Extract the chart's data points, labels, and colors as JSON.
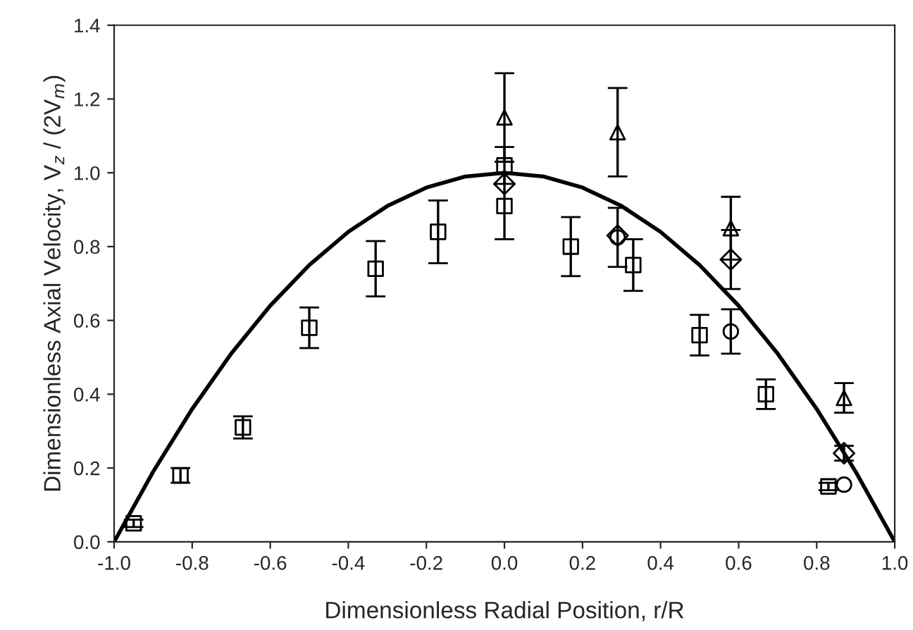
{
  "chart_data": {
    "type": "scatter",
    "xlabel": "Dimensionless Radial Position, r/R",
    "ylabel": "Dimensionless Axial Velocity, V$_{z}$ / (2V$_{m}$)",
    "xlim": [
      -1.0,
      1.0
    ],
    "xticks": [
      {
        "value": -1.0,
        "label": "-1.0"
      },
      {
        "value": -0.8,
        "label": "-0.8"
      },
      {
        "value": -0.6,
        "label": "-0.6"
      },
      {
        "value": -0.4,
        "label": "-0.4"
      },
      {
        "value": -0.2,
        "label": "-0.2"
      },
      {
        "value": 0.0,
        "label": "0.0"
      },
      {
        "value": 0.2,
        "label": "0.2"
      },
      {
        "value": 0.4,
        "label": "0.4"
      },
      {
        "value": 0.6,
        "label": "0.6"
      },
      {
        "value": 0.8,
        "label": "0.8"
      },
      {
        "value": 1.0,
        "label": "1.0"
      }
    ],
    "ylim": [
      0.0,
      1.4
    ],
    "yticks": [
      {
        "value": 0.0,
        "label": "0.0"
      },
      {
        "value": 0.2,
        "label": "0.2"
      },
      {
        "value": 0.4,
        "label": "0.4"
      },
      {
        "value": 0.6,
        "label": "0.6"
      },
      {
        "value": 0.8,
        "label": "0.8"
      },
      {
        "value": 1.0,
        "label": "1.0"
      },
      {
        "value": 1.2,
        "label": "1.2"
      },
      {
        "value": 1.4,
        "label": "1.4"
      }
    ],
    "grid": false,
    "series": [
      {
        "type": "line",
        "color": "#000000",
        "marker": "none",
        "x": [
          -1.0,
          -0.9,
          -0.8,
          -0.7,
          -0.6,
          -0.5,
          -0.4,
          -0.3,
          -0.2,
          -0.1,
          0.0,
          0.1,
          0.2,
          0.3,
          0.4,
          0.5,
          0.6,
          0.7,
          0.8,
          0.9,
          1.0
        ],
        "values": [
          0.0,
          0.19,
          0.36,
          0.51,
          0.64,
          0.75,
          0.84,
          0.91,
          0.96,
          0.99,
          1.0,
          0.99,
          0.96,
          0.91,
          0.84,
          0.75,
          0.64,
          0.51,
          0.36,
          0.19,
          0.0
        ]
      },
      {
        "color": "#000000",
        "marker": "square",
        "x": [
          -0.95,
          -0.83,
          -0.67,
          -0.5,
          -0.33,
          -0.17,
          0.0,
          0.0,
          0.17,
          0.33,
          0.5,
          0.67,
          0.83
        ],
        "values": [
          0.05,
          0.18,
          0.31,
          0.58,
          0.74,
          0.84,
          1.02,
          0.91,
          0.8,
          0.75,
          0.56,
          0.4,
          0.15
        ],
        "errors": [
          0.01,
          0.02,
          0.03,
          0.055,
          0.075,
          0.085,
          0.05,
          0.09,
          0.08,
          0.07,
          0.055,
          0.04,
          0.01
        ]
      },
      {
        "color": "#000000",
        "marker": "diamond",
        "x": [
          0.0,
          0.29,
          0.58,
          0.87
        ],
        "values": [
          0.97,
          0.83,
          0.765,
          0.24
        ],
        "errors": [
          null,
          null,
          0.08,
          0.02
        ]
      },
      {
        "color": "#000000",
        "marker": "circle",
        "x": [
          0.29,
          0.58,
          0.87
        ],
        "values": [
          0.825,
          0.57,
          0.155
        ],
        "errors": [
          0.08,
          0.06,
          null
        ]
      },
      {
        "color": "#000000",
        "marker": "triangle",
        "x": [
          0.0,
          0.29,
          0.58,
          0.87
        ],
        "values": [
          1.15,
          1.11,
          0.85,
          0.39
        ],
        "errors": [
          0.12,
          0.12,
          0.085,
          0.04
        ]
      }
    ]
  }
}
